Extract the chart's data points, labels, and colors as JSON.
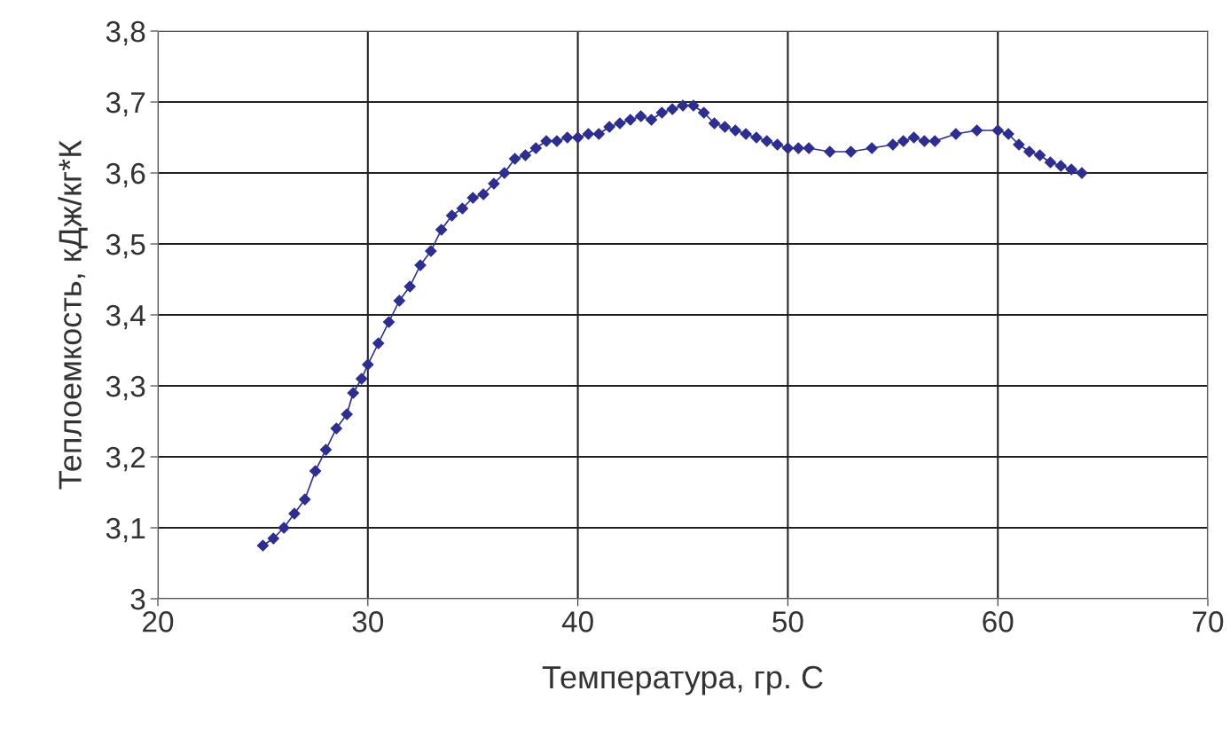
{
  "chart_data": {
    "type": "line",
    "xlabel": "Температура, гр. С",
    "ylabel": "Теплоемкость, кДж/кг*К",
    "x": [
      25,
      25.5,
      26,
      26.5,
      27,
      27.5,
      28,
      28.5,
      29,
      29.3,
      29.7,
      30,
      30.5,
      31,
      31.5,
      32,
      32.5,
      33,
      33.5,
      34,
      34.5,
      35,
      35.5,
      36,
      36.5,
      37,
      37.5,
      38,
      38.5,
      39,
      39.5,
      40,
      40.5,
      41,
      41.5,
      42,
      42.5,
      43,
      43.5,
      44,
      44.5,
      45,
      45.5,
      46,
      46.5,
      47,
      47.5,
      48,
      48.5,
      49,
      49.5,
      50,
      50.5,
      51,
      52,
      53,
      54,
      55,
      55.5,
      56,
      56.5,
      57,
      58,
      59,
      60,
      60.5,
      61,
      61.5,
      62,
      62.5,
      63,
      63.5,
      64
    ],
    "series": [
      {
        "color": "#2e2e8f",
        "values": [
          3.075,
          3.085,
          3.1,
          3.12,
          3.14,
          3.18,
          3.21,
          3.24,
          3.26,
          3.29,
          3.31,
          3.33,
          3.36,
          3.39,
          3.42,
          3.44,
          3.47,
          3.49,
          3.52,
          3.54,
          3.55,
          3.565,
          3.57,
          3.585,
          3.6,
          3.62,
          3.625,
          3.635,
          3.645,
          3.645,
          3.65,
          3.65,
          3.655,
          3.655,
          3.665,
          3.67,
          3.675,
          3.68,
          3.675,
          3.685,
          3.69,
          3.695,
          3.695,
          3.685,
          3.67,
          3.665,
          3.66,
          3.655,
          3.65,
          3.645,
          3.64,
          3.635,
          3.635,
          3.635,
          3.63,
          3.63,
          3.635,
          3.64,
          3.645,
          3.65,
          3.645,
          3.645,
          3.655,
          3.66,
          3.66,
          3.655,
          3.64,
          3.63,
          3.625,
          3.615,
          3.61,
          3.605,
          3.6
        ]
      }
    ],
    "xlim": [
      20,
      70
    ],
    "xticks": [
      20,
      30,
      40,
      50,
      60,
      70
    ],
    "ylim": [
      3,
      3.8
    ],
    "yticks": [
      {
        "value": 3,
        "label": "3"
      },
      {
        "value": 3.1,
        "label": "3,1"
      },
      {
        "value": 3.2,
        "label": "3,2"
      },
      {
        "value": 3.3,
        "label": "3,3"
      },
      {
        "value": 3.4,
        "label": "3,4"
      },
      {
        "value": 3.5,
        "label": "3,5"
      },
      {
        "value": 3.6,
        "label": "3,6"
      },
      {
        "value": 3.7,
        "label": "3,7"
      },
      {
        "value": 3.8,
        "label": "3,8"
      }
    ],
    "grid": true,
    "marker": "diamond",
    "line_style": "solid",
    "legend": false
  }
}
